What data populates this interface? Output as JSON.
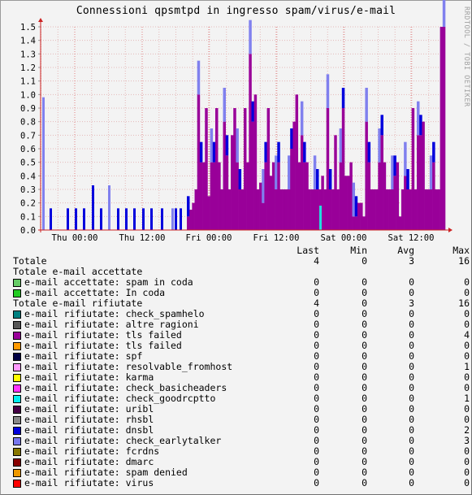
{
  "title": "Connessioni qpsmtpd in ingresso spam/virus/e-mail",
  "side_credit": "RRDTOOL / TOBI OETIKER",
  "chart_data": {
    "type": "bar",
    "stacked": true,
    "y_ticks": [
      "0.0",
      "0.1",
      "0.2",
      "0.3",
      "0.4",
      "0.5",
      "0.6",
      "0.7",
      "0.8",
      "0.9",
      "1.0",
      "1.1",
      "1.2",
      "1.3",
      "1.4",
      "1.5"
    ],
    "ylim": [
      0,
      1.5
    ],
    "x_ticks": [
      "Thu 00:00",
      "Thu 12:00",
      "Fri 00:00",
      "Fri 12:00",
      "Sat 00:00",
      "Sat 12:00"
    ],
    "grid": true,
    "colors": {
      "tls_failed": "#990099",
      "dnsbl": "#0000dd",
      "earlytalker": "#8080ee",
      "goodrcptto": "#22dddd",
      "resolvable": "#ee88ee",
      "grid": "#e4b8b8",
      "axis": "#cc2222"
    },
    "series": [
      {
        "name": "tls failed",
        "values": [
          0.02,
          0.02,
          0.02,
          0,
          0,
          0,
          0,
          0,
          0,
          0,
          0,
          0,
          0,
          0,
          0,
          0,
          0,
          0,
          0,
          0,
          0,
          0,
          0,
          0,
          0,
          0,
          0,
          0,
          0,
          0,
          0,
          0,
          0,
          0,
          0,
          0,
          0,
          0,
          0,
          0,
          0,
          0,
          0,
          0,
          0,
          0,
          0,
          0,
          0,
          0,
          0,
          0,
          0,
          0,
          0,
          0,
          0,
          0,
          0,
          0,
          0,
          0,
          0,
          0.1,
          0.15,
          0.2,
          0.3,
          1.0,
          0.5,
          0.5,
          0.9,
          0.25,
          0.5,
          0.5,
          0.9,
          0.5,
          0.3,
          0.8,
          0.55,
          0.3,
          0.7,
          0.9,
          0.5,
          0.3,
          0.3,
          0.9,
          0.5,
          1.3,
          0.8,
          1.0,
          0.3,
          0.35,
          0.2,
          0.5,
          0.9,
          0.4,
          0.5,
          0.3,
          0.5,
          0.3,
          0.3,
          0.3,
          0.3,
          0.6,
          0.8,
          1.0,
          0.5,
          0.7,
          0.5,
          0.5,
          0.3,
          0.3,
          0.3,
          0.3,
          0.3,
          0.4,
          0.3,
          0.9,
          0.3,
          0.3,
          0.7,
          0.3,
          0.5,
          0.9,
          0.4,
          0.4,
          0.5,
          0.1,
          0.1,
          0.2,
          0.2,
          0.1,
          0.8,
          0.5,
          0.3,
          0.3,
          0.3,
          0.5,
          0.7,
          0.5,
          0.3,
          0.3,
          0.3,
          0.4,
          0.5,
          0.1,
          0.3,
          0.4,
          0.3,
          0.3,
          0.9,
          0.3,
          0.7,
          0.7,
          0.8,
          0.3,
          0.3,
          0.3,
          0.5,
          0.3,
          0.3,
          1.5
        ]
      },
      {
        "name": "dnsbl",
        "values": [
          0.48,
          0.02,
          0.0,
          0.16,
          0.0,
          0.16,
          0.16,
          0.16,
          0.16,
          0.34,
          0.16,
          0.16,
          0.16,
          0.16,
          0.16,
          0.16,
          0.16,
          0.16,
          0.16,
          0.16,
          0.16,
          0.16,
          0.16,
          0.16,
          0.16,
          0.16,
          0.16,
          0.16,
          0.16,
          0.16,
          0.16,
          0.16,
          0.16,
          0.16,
          0.16,
          0.16,
          0.16,
          0.16,
          0.16,
          0.16,
          0.16,
          0.16,
          0.16,
          0.16,
          0.16,
          0.16,
          0.16,
          0.16,
          0.16,
          0.16,
          0.16,
          0.16,
          0.16,
          0.16,
          0.16,
          0.16,
          0.16,
          0.16,
          0.16,
          0.16,
          0.16,
          0.16,
          0.16,
          0.0,
          0.0,
          0.0,
          0.0,
          0.0,
          0.0,
          0.0,
          0.0,
          0.0,
          0.0,
          0.0,
          0.0,
          0.0,
          0.0,
          0.0,
          0.0,
          0.0,
          0.0,
          0.0,
          0.0,
          0.0,
          0.0,
          0.0,
          0.0,
          0.0,
          0.0,
          0.0,
          0.0,
          0.0,
          0.0,
          0.0,
          0.0,
          0.0,
          0.0,
          0.0,
          0.0,
          0.0,
          0.0,
          0.0,
          0.0,
          0.0,
          0.0,
          0.0,
          0.0,
          0.0,
          0.0,
          0.0,
          0.0,
          0.0,
          0.0,
          0.0,
          0.0,
          0.0,
          0.0,
          0.0,
          0.0,
          0.0,
          0.0,
          0.0,
          0.0,
          0.0,
          0.0,
          0.0,
          0.0,
          0.0,
          0.0,
          0.0,
          0.0,
          0.0,
          0.0,
          0.0,
          0.0,
          0.0,
          0.0,
          0.0,
          0.0,
          0.0,
          0.0,
          0.0,
          0.0,
          0.0,
          0.0,
          0.0,
          0.0,
          0.0,
          0.0,
          0.0,
          0.0,
          0.0,
          0.0,
          0.0,
          0.0,
          0.0,
          0.0,
          0.0,
          0.0,
          0.0,
          0.0,
          0.0,
          0.0,
          0.0,
          0.0
        ]
      }
    ]
  },
  "legend": {
    "headers": {
      "last": "Last",
      "min": "Min",
      "avg": "Avg",
      "max": "Max"
    },
    "rows": [
      {
        "label": "Totale",
        "color": "",
        "last": "4",
        "min": "0",
        "avg": "3",
        "max": "16"
      },
      {
        "label": "Totale e-mail accettate",
        "color": "",
        "last": "",
        "min": "",
        "avg": "",
        "max": ""
      },
      {
        "label": "e-mail accettate: spam in coda",
        "color": "#66cc66",
        "last": "0",
        "min": "0",
        "avg": "0",
        "max": "0"
      },
      {
        "label": "e-mail accettate: In coda",
        "color": "#22cc22",
        "last": "0",
        "min": "0",
        "avg": "0",
        "max": "0"
      },
      {
        "label": "Totale e-mail rifiutate",
        "color": "",
        "last": "4",
        "min": "0",
        "avg": "3",
        "max": "16"
      },
      {
        "label": "e-mail rifiutate: check_spamhelo",
        "color": "#008080",
        "last": "0",
        "min": "0",
        "avg": "0",
        "max": "0"
      },
      {
        "label": "e-mail rifiutate: altre ragioni",
        "color": "#555555",
        "last": "0",
        "min": "0",
        "avg": "0",
        "max": "0"
      },
      {
        "label": "e-mail rifiutate: tls failed",
        "color": "#990099",
        "last": "0",
        "min": "0",
        "avg": "0",
        "max": "4"
      },
      {
        "label": "e-mail rifiutate: tls failed",
        "color": "#ff9900",
        "last": "0",
        "min": "0",
        "avg": "0",
        "max": "0"
      },
      {
        "label": "e-mail rifiutate: spf",
        "color": "#000044",
        "last": "0",
        "min": "0",
        "avg": "0",
        "max": "0"
      },
      {
        "label": "e-mail rifiutate: resolvable_fromhost",
        "color": "#ff99ff",
        "last": "0",
        "min": "0",
        "avg": "0",
        "max": "1"
      },
      {
        "label": "e-mail rifiutate: karma",
        "color": "#ffff00",
        "last": "0",
        "min": "0",
        "avg": "0",
        "max": "0"
      },
      {
        "label": "e-mail rifiutate: check_basicheaders",
        "color": "#ff33ff",
        "last": "0",
        "min": "0",
        "avg": "0",
        "max": "0"
      },
      {
        "label": "e-mail rifiutate: check_goodrcptto",
        "color": "#00eeee",
        "last": "0",
        "min": "0",
        "avg": "0",
        "max": "1"
      },
      {
        "label": "e-mail rifiutate: uribl",
        "color": "#440044",
        "last": "0",
        "min": "0",
        "avg": "0",
        "max": "0"
      },
      {
        "label": "e-mail rifiutate: rhsbl",
        "color": "#888888",
        "last": "0",
        "min": "0",
        "avg": "0",
        "max": "0"
      },
      {
        "label": "e-mail rifiutate: dnsbl",
        "color": "#0000dd",
        "last": "0",
        "min": "0",
        "avg": "0",
        "max": "2"
      },
      {
        "label": "e-mail rifiutate: check_earlytalker",
        "color": "#7777ee",
        "last": "0",
        "min": "0",
        "avg": "0",
        "max": "3"
      },
      {
        "label": "e-mail rifiutate: fcrdns",
        "color": "#887700",
        "last": "0",
        "min": "0",
        "avg": "0",
        "max": "0"
      },
      {
        "label": "e-mail rifiutate: dmarc",
        "color": "#880000",
        "last": "0",
        "min": "0",
        "avg": "0",
        "max": "0"
      },
      {
        "label": "e-mail rifiutate: spam denied",
        "color": "#ee9900",
        "last": "0",
        "min": "0",
        "avg": "0",
        "max": "0"
      },
      {
        "label": "e-mail rifiutate: virus",
        "color": "#ff0000",
        "last": "0",
        "min": "0",
        "avg": "0",
        "max": "0"
      }
    ]
  }
}
